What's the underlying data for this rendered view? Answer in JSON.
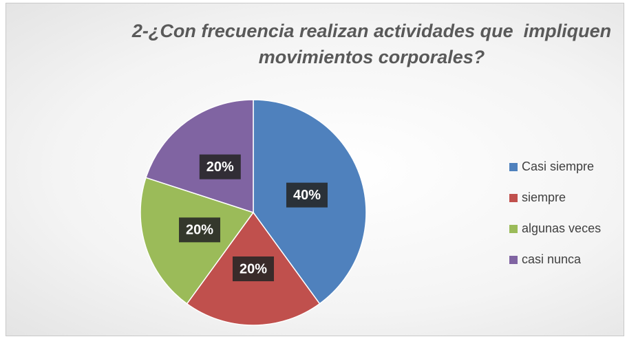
{
  "chart_data": {
    "type": "pie",
    "title": "2-¿Con frecuencia realizan actividades que  impliquen movimientos corporales?",
    "categories": [
      "Casi siempre",
      "siempre",
      "algunas veces",
      "casi nunca"
    ],
    "values": [
      40,
      20,
      20,
      20
    ],
    "value_labels": [
      "40%",
      "20%",
      "20%",
      "20%"
    ],
    "colors": [
      "#4f81bd",
      "#c0504d",
      "#9bbb59",
      "#8064a2"
    ],
    "legend": "right"
  }
}
